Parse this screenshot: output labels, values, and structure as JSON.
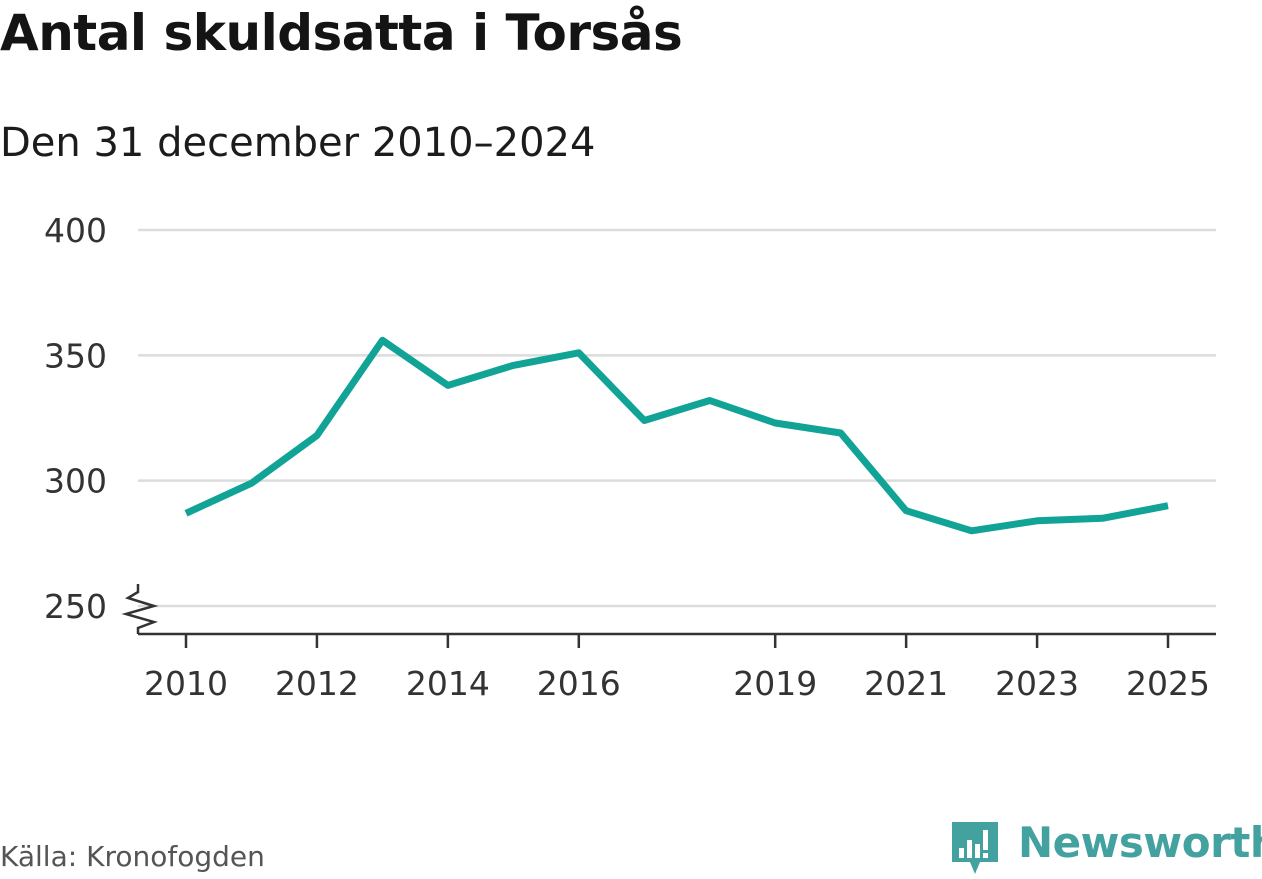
{
  "header": {
    "title": "Antal skuldsatta i Torsås",
    "subtitle": "Den 31 december 2010–2024"
  },
  "footer": {
    "source": "Källa: Kronofogden",
    "brand": "Newsworthy",
    "brand_icon": "bar-chart-speech-bubble-icon"
  },
  "colors": {
    "line": "#12a397",
    "grid": "#dcdcdc",
    "axis": "#333333",
    "brand": "#43a1a0"
  },
  "chart_data": {
    "type": "line",
    "title": "Antal skuldsatta i Torsås",
    "subtitle": "Den 31 december 2010–2024",
    "xlabel": "",
    "ylabel": "",
    "x": [
      2010,
      2011,
      2012,
      2013,
      2014,
      2015,
      2016,
      2017,
      2018,
      2019,
      2020,
      2021,
      2022,
      2023,
      2024,
      2025
    ],
    "values": [
      287,
      299,
      318,
      356,
      338,
      346,
      351,
      324,
      332,
      323,
      319,
      288,
      280,
      284,
      285,
      290
    ],
    "xlim": [
      2009.6,
      2025.4
    ],
    "ylim": [
      250,
      400
    ],
    "x_ticks": [
      "2010",
      "2012",
      "2014",
      "2016",
      "2019",
      "2021",
      "2023",
      "2025"
    ],
    "y_ticks": [
      "250",
      "300",
      "350",
      "400"
    ],
    "axis_break": true,
    "grid": "horizontal",
    "legend": "none"
  }
}
